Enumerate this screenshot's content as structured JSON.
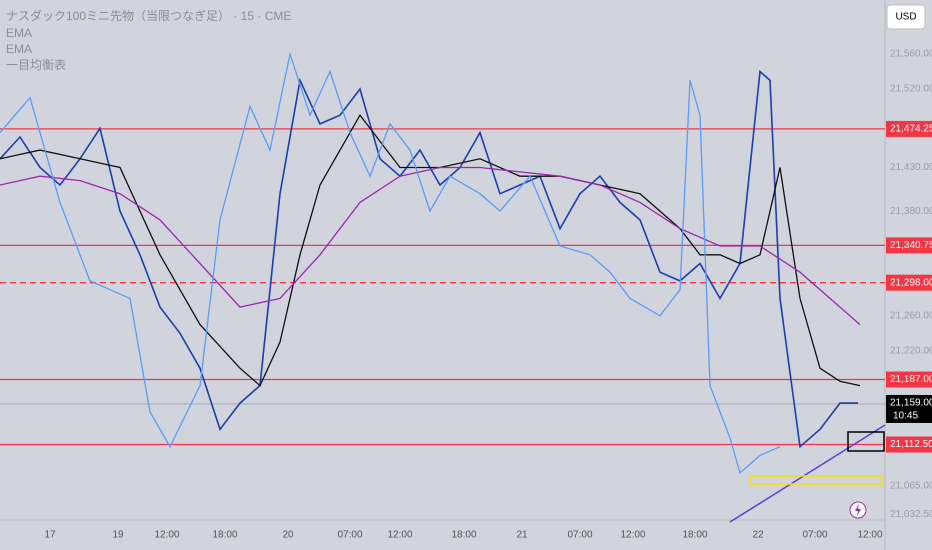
{
  "chart_data": {
    "type": "line",
    "title": "ナスダック100ミニ先物（当限つなぎ足） · 15 · CME",
    "indicators": [
      "EMA",
      "EMA",
      "一目均衡表"
    ],
    "currency": "USD",
    "xlim": [
      0,
      176
    ],
    "ylim": [
      21026,
      21622
    ],
    "xticks": [
      {
        "value": 10,
        "label": "17"
      },
      {
        "value": 23.6,
        "label": "19"
      },
      {
        "value": 33.4,
        "label": "12:00"
      },
      {
        "value": 45,
        "label": "18:00"
      },
      {
        "value": 57.6,
        "label": "20"
      },
      {
        "value": 70,
        "label": "07:00"
      },
      {
        "value": 80,
        "label": "12:00"
      },
      {
        "value": 92.8,
        "label": "18:00"
      },
      {
        "value": 104.4,
        "label": "21"
      },
      {
        "value": 116,
        "label": "07:00"
      },
      {
        "value": 126.6,
        "label": "12:00"
      },
      {
        "value": 139,
        "label": "18:00"
      },
      {
        "value": 151.6,
        "label": "22"
      },
      {
        "value": 163,
        "label": "07:00"
      },
      {
        "value": 174,
        "label": "12:00"
      }
    ],
    "yticks": [
      {
        "value": 21560,
        "label": "21,560.00"
      },
      {
        "value": 21520,
        "label": "21,520.00"
      },
      {
        "value": 21430,
        "label": "21,430.00"
      },
      {
        "value": 21380,
        "label": "21,380.00"
      },
      {
        "value": 21260,
        "label": "21,260.00"
      },
      {
        "value": 21220,
        "label": "21,220.00"
      },
      {
        "value": 21065,
        "label": "21,065.00"
      },
      {
        "value": 21032.5,
        "label": "21,032.50"
      }
    ],
    "levels": [
      {
        "value": 21474.25,
        "label": "21,474.25",
        "style": "solid",
        "color": "#f23645"
      },
      {
        "value": 21340.75,
        "label": "21,340.75",
        "style": "solid",
        "color": "#f23645"
      },
      {
        "value": 21298,
        "label": "21,298.00",
        "style": "dashed",
        "color": "#f23645"
      },
      {
        "value": 21187,
        "label": "21,187.00",
        "style": "solid",
        "color": "#f23645"
      },
      {
        "value": 21112.5,
        "label": "21,112.50",
        "style": "solid",
        "color": "#f23645"
      }
    ],
    "last_price": {
      "value": 21159,
      "label": "21,159.00",
      "time": "10:45"
    },
    "series": [
      {
        "name": "Price",
        "color": "#1c3faa",
        "x": [
          0,
          4,
          8,
          12,
          16,
          20,
          24,
          28,
          32,
          36,
          40,
          44,
          48,
          52,
          56,
          60,
          64,
          68,
          72,
          76,
          80,
          84,
          88,
          92,
          96,
          100,
          104,
          108,
          112,
          116,
          120,
          124,
          128,
          132,
          136,
          140,
          144,
          148,
          152,
          154,
          156,
          160,
          164,
          168,
          171.6
        ],
        "values": [
          21440,
          21465,
          21430,
          21410,
          21440,
          21475,
          21380,
          21330,
          21270,
          21240,
          21200,
          21130,
          21160,
          21180,
          21400,
          21530,
          21480,
          21490,
          21520,
          21440,
          21420,
          21450,
          21410,
          21430,
          21470,
          21400,
          21410,
          21420,
          21360,
          21400,
          21420,
          21390,
          21370,
          21310,
          21300,
          21320,
          21280,
          21320,
          21540,
          21530,
          21280,
          21110,
          21130,
          21160,
          21160
        ]
      },
      {
        "name": "EMA",
        "color": "#111111",
        "x": [
          0,
          8,
          16,
          24,
          32,
          40,
          48,
          52,
          56,
          60,
          64,
          72,
          80,
          88,
          96,
          104,
          112,
          120,
          128,
          136,
          140,
          144,
          148,
          152,
          156,
          160,
          164,
          168,
          172
        ],
        "values": [
          21440,
          21450,
          21440,
          21430,
          21330,
          21250,
          21200,
          21180,
          21230,
          21330,
          21410,
          21490,
          21430,
          21430,
          21440,
          21420,
          21420,
          21410,
          21400,
          21360,
          21330,
          21330,
          21320,
          21330,
          21430,
          21280,
          21200,
          21185,
          21180
        ]
      },
      {
        "name": "EMA",
        "color": "#9c27b0",
        "x": [
          0,
          8,
          16,
          24,
          32,
          40,
          48,
          56,
          64,
          72,
          80,
          88,
          96,
          104,
          112,
          120,
          128,
          136,
          144,
          152,
          160,
          168,
          172
        ],
        "values": [
          21410,
          21420,
          21415,
          21400,
          21370,
          21320,
          21270,
          21280,
          21330,
          21390,
          21420,
          21430,
          21430,
          21425,
          21420,
          21410,
          21390,
          21360,
          21340,
          21340,
          21310,
          21270,
          21250
        ]
      },
      {
        "name": "一目均衡表",
        "color": "#5b9cf6",
        "x": [
          0,
          6,
          12,
          18,
          22,
          26,
          30,
          34,
          40,
          44,
          50,
          54,
          58,
          62,
          66,
          70,
          74,
          78,
          82,
          86,
          90,
          96,
          100,
          106,
          112,
          118,
          122,
          126,
          132,
          136,
          138,
          140,
          142,
          146,
          148,
          150,
          152,
          156
        ],
        "values": [
          21470,
          21510,
          21390,
          21300,
          21290,
          21280,
          21150,
          21110,
          21180,
          21370,
          21500,
          21450,
          21560,
          21490,
          21540,
          21470,
          21420,
          21480,
          21450,
          21380,
          21420,
          21400,
          21380,
          21420,
          21340,
          21330,
          21310,
          21280,
          21260,
          21290,
          21530,
          21490,
          21180,
          21120,
          21080,
          21090,
          21100,
          21110
        ]
      }
    ]
  }
}
